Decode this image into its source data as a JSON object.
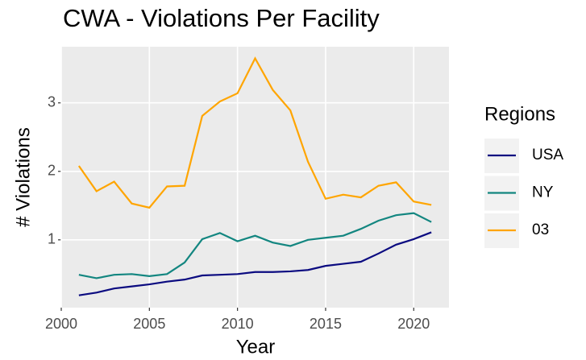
{
  "chart_data": {
    "type": "line",
    "title": "CWA - Violations Per Facility",
    "x_label": "Year",
    "y_label": "# Violations",
    "legend_title": "Regions",
    "legend": "right",
    "grid": true,
    "x": [
      2001,
      2002,
      2003,
      2004,
      2005,
      2006,
      2007,
      2008,
      2009,
      2010,
      2011,
      2012,
      2013,
      2014,
      2015,
      2016,
      2017,
      2018,
      2019,
      2020,
      2021
    ],
    "series": [
      {
        "name": "USA",
        "color": "#0b0b80",
        "values": [
          0.19,
          0.23,
          0.29,
          0.32,
          0.35,
          0.39,
          0.42,
          0.48,
          0.49,
          0.5,
          0.53,
          0.53,
          0.54,
          0.56,
          0.62,
          0.65,
          0.68,
          0.8,
          0.93,
          1.01,
          1.11
        ]
      },
      {
        "name": "NY",
        "color": "#138680",
        "values": [
          0.49,
          0.44,
          0.49,
          0.5,
          0.47,
          0.5,
          0.67,
          1.01,
          1.1,
          0.98,
          1.06,
          0.96,
          0.91,
          1.0,
          1.03,
          1.06,
          1.16,
          1.28,
          1.36,
          1.39,
          1.26
        ]
      },
      {
        "name": "03",
        "color": "#ffa500",
        "values": [
          2.08,
          1.71,
          1.85,
          1.53,
          1.47,
          1.78,
          1.79,
          2.81,
          3.02,
          3.14,
          3.65,
          3.19,
          2.89,
          2.14,
          1.6,
          1.66,
          1.62,
          1.79,
          1.84,
          1.56,
          1.51
        ]
      }
    ],
    "xlim": [
      2000,
      2022
    ],
    "xticks": [
      2000,
      2005,
      2010,
      2015,
      2020
    ],
    "ylim": [
      0.01,
      3.82
    ],
    "yticks": [
      1,
      2,
      3
    ]
  }
}
